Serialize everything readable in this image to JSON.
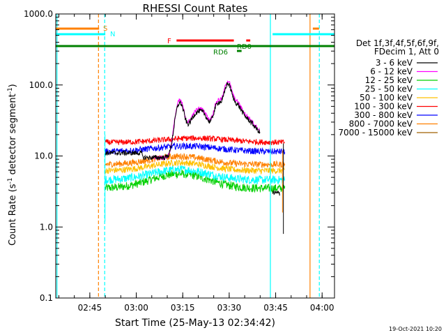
{
  "chart_data": {
    "type": "line",
    "title": "RHESSI Count Rates",
    "xlabel": "Start Time (25-May-13 02:34:42)",
    "ylabel_main": "Count Rate (s",
    "ylabel_sup1": "-1",
    "ylabel_mid": " detector segment",
    "ylabel_sup2": "-1",
    "ylabel_end": ")",
    "y_scale": "log",
    "ylim": [
      0.1,
      1000
    ],
    "xlim_minutes": [
      0,
      90
    ],
    "x_ticks": [
      {
        "m": 11,
        "label": "02:45"
      },
      {
        "m": 26,
        "label": "03:00"
      },
      {
        "m": 41,
        "label": "03:15"
      },
      {
        "m": 56,
        "label": "03:30"
      },
      {
        "m": 71,
        "label": "03:45"
      },
      {
        "m": 86,
        "label": "04:00"
      }
    ],
    "y_ticks": [
      {
        "v": 0.1,
        "label": "0.1"
      },
      {
        "v": 1,
        "label": "1.0"
      },
      {
        "v": 10,
        "label": "10.0"
      },
      {
        "v": 100,
        "label": "100.0"
      },
      {
        "v": 1000,
        "label": "1000.0"
      }
    ],
    "legend_position": "right",
    "legend_header": [
      "Det 1f,3f,4f,5f,6f,9f,",
      "FDecim 1, Att 0"
    ],
    "series": [
      {
        "name": "3 - 6 keV",
        "color": "#000000"
      },
      {
        "name": "6 - 12 keV",
        "color": "#ff00ff"
      },
      {
        "name": "12 - 25 keV",
        "color": "#00d000"
      },
      {
        "name": "25 - 50 keV",
        "color": "#00ffff"
      },
      {
        "name": "50 - 100 keV",
        "color": "#ffc000"
      },
      {
        "name": "100 - 300 keV",
        "color": "#ff0000"
      },
      {
        "name": "300 - 800 keV",
        "color": "#0000ff"
      },
      {
        "name": "800 - 7000 keV",
        "color": "#ff8000"
      },
      {
        "name": "7000 - 15000 keV",
        "color": "#a06000"
      }
    ],
    "flag_labels": {
      "S": "S",
      "N": "N",
      "F": "F",
      "RD0": "RD0",
      "RD6": "RD6"
    },
    "timestamp": "19-Oct-2021 10:20"
  }
}
